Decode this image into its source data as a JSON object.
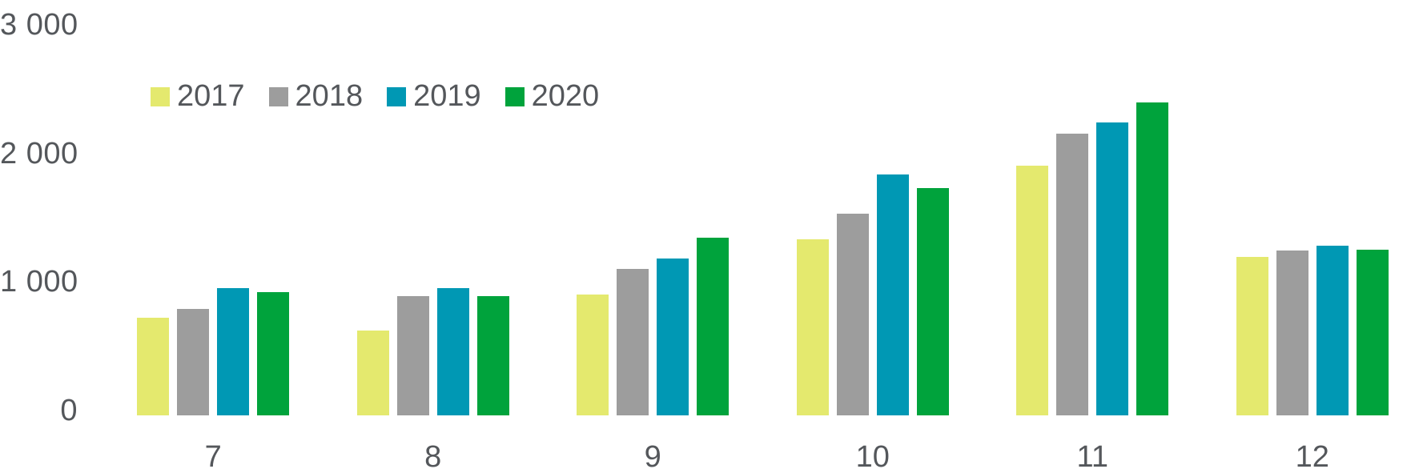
{
  "chart_data": {
    "type": "bar",
    "title": "",
    "xlabel": "",
    "ylabel": "",
    "categories": [
      "7",
      "8",
      "9",
      "10",
      "11",
      "12"
    ],
    "series": [
      {
        "name": "2017",
        "color": "#e4e96e",
        "values": [
          760,
          660,
          940,
          1370,
          1940,
          1230
        ]
      },
      {
        "name": "2018",
        "color": "#9d9d9d",
        "values": [
          830,
          930,
          1140,
          1570,
          2190,
          1280
        ]
      },
      {
        "name": "2019",
        "color": "#0098b4",
        "values": [
          990,
          990,
          1220,
          1870,
          2280,
          1320
        ]
      },
      {
        "name": "2020",
        "color": "#00a33c",
        "values": [
          960,
          930,
          1380,
          1770,
          2430,
          1290
        ]
      }
    ],
    "ylim": [
      0,
      3000
    ],
    "yticks": [
      {
        "value": 0,
        "label": "0"
      },
      {
        "value": 1000,
        "label": "1 000"
      },
      {
        "value": 2000,
        "label": "2 000"
      },
      {
        "value": 3000,
        "label": "3 000"
      }
    ],
    "legend_position": "top-left",
    "grid": false
  },
  "style": {
    "text_color": "#54575b",
    "background": "#ffffff"
  }
}
